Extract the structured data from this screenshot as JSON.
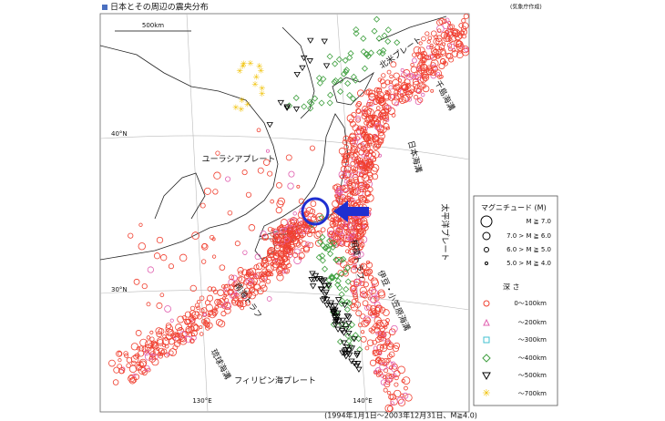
{
  "header": {
    "title": "日本とその周辺の震央分布",
    "source": "(気象庁作成)"
  },
  "map": {
    "scale": "500km",
    "lat_labels": [
      "40°N",
      "30°N"
    ],
    "lon_labels": [
      "130°E",
      "140°E"
    ],
    "plates": [
      "ユーラシアプレート",
      "北米プレート",
      "太平洋プレート",
      "フィリピン海プレート"
    ],
    "trenches": [
      "千島海溝",
      "日本海溝",
      "相模トラフ",
      "伊豆・小笠原海溝",
      "南海トラフ",
      "琉球海溝"
    ]
  },
  "legend": {
    "magnitude_title": "マグニチュード (M)",
    "magnitudes": [
      "M ≧ 7.0",
      "7.0 > M ≧ 6.0",
      "6.0 > M ≧ 5.0",
      "5.0 > M ≧ 4.0"
    ],
    "depth_title": "深 さ",
    "depths": [
      "0〜100km",
      "〜200km",
      "〜300km",
      "〜400km",
      "〜500km",
      "〜700km"
    ]
  },
  "caption": "(1994年1月1日〜2003年12月31日、M≧4.0)"
}
